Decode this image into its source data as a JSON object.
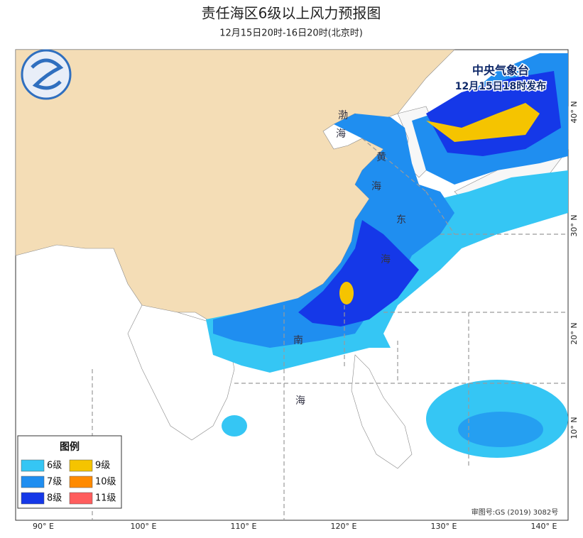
{
  "header": {
    "title": "责任海区6级以上风力预报图",
    "subtitle": "12月15日20时-16日20时(北京时)"
  },
  "issuer": {
    "agency": "中央气象台",
    "issued": "12月15日18时发布"
  },
  "sea_labels": [
    "渤",
    "海",
    "黄",
    "海",
    "东",
    "海",
    "南",
    "海"
  ],
  "legend": {
    "title": "图例",
    "items": [
      {
        "label": "6级",
        "color": "#35c6f4"
      },
      {
        "label": "7级",
        "color": "#1f8ef0"
      },
      {
        "label": "8级",
        "color": "#1538e8"
      },
      {
        "label": "9级",
        "color": "#f5c400"
      },
      {
        "label": "10级",
        "color": "#ff8a00"
      },
      {
        "label": "11级",
        "color": "#ff5d5d"
      }
    ]
  },
  "lon_labels": [
    "90° E",
    "100° E",
    "110° E",
    "120° E",
    "130° E",
    "140° E"
  ],
  "lat_labels": [
    "40° N",
    "30° N",
    "20° N",
    "10° N"
  ],
  "review_number": "审图号:GS (2019) 3082号"
}
